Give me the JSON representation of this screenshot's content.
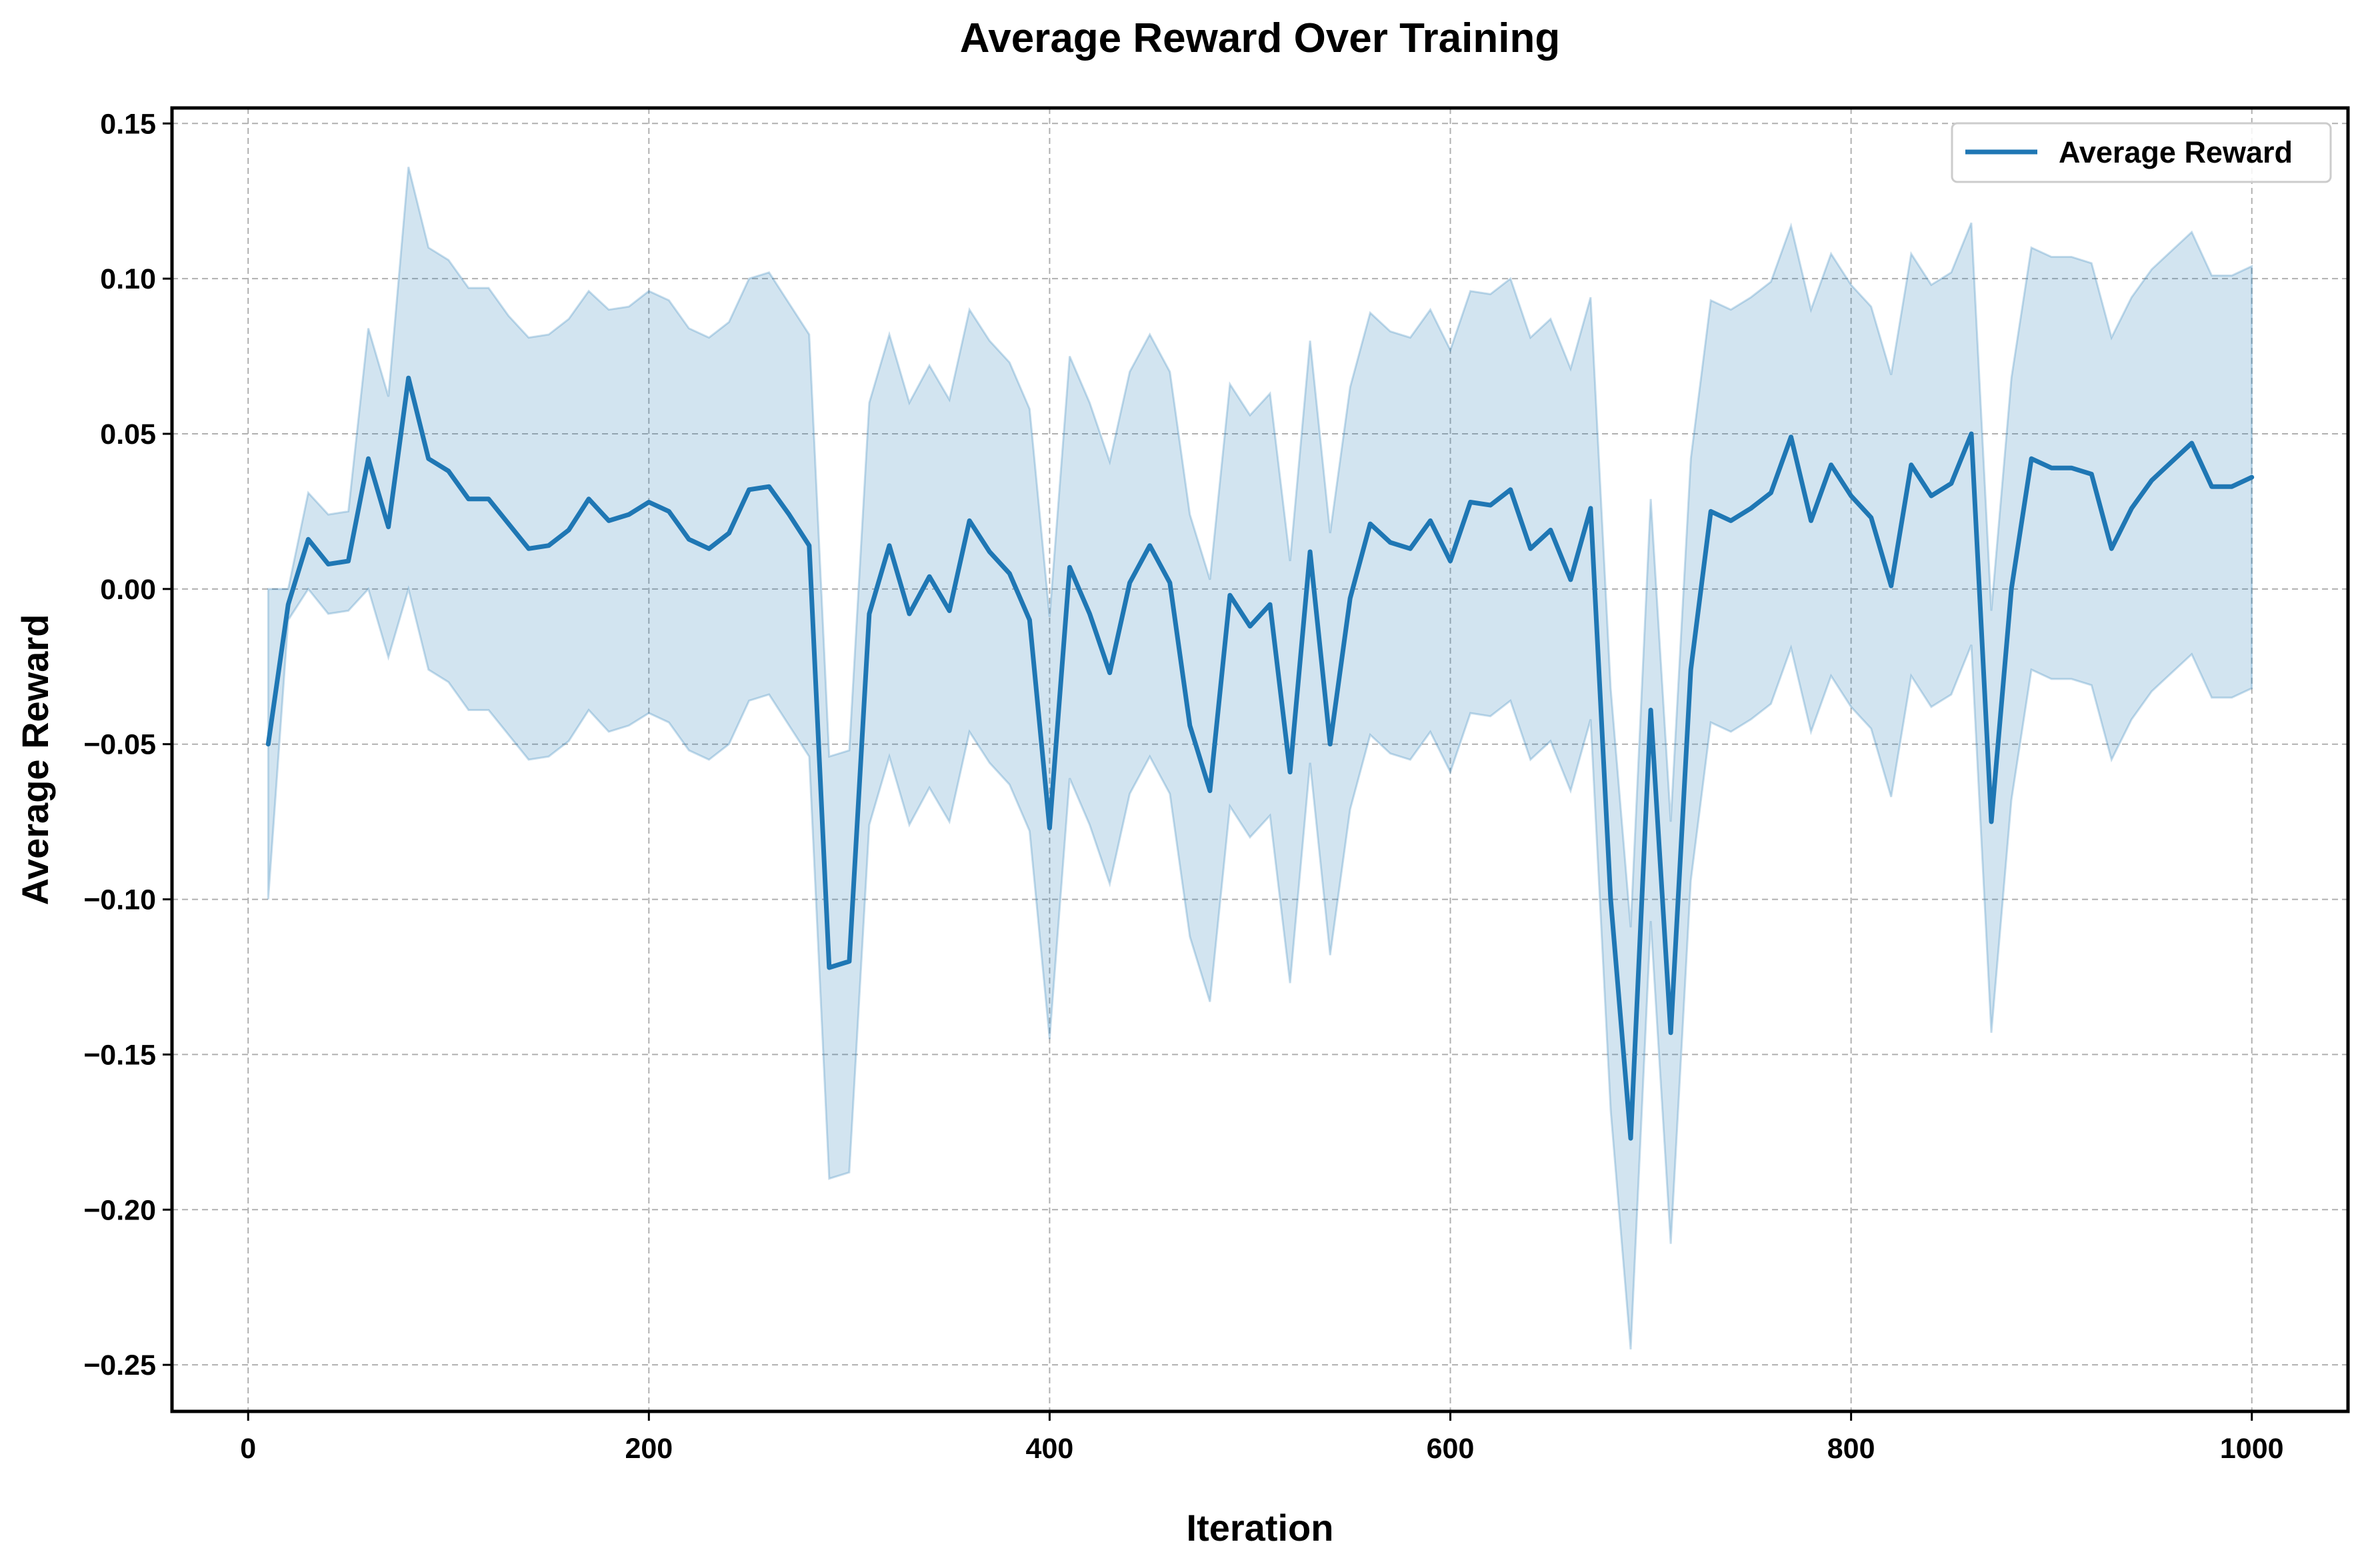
{
  "chart_data": {
    "type": "line",
    "title": "Average Reward Over Training",
    "xlabel": "Iteration",
    "ylabel": "Average Reward",
    "xlim": [
      -38,
      1048
    ],
    "ylim": [
      -0.265,
      0.155
    ],
    "xticks": [
      0,
      200,
      400,
      600,
      800,
      1000
    ],
    "yticks": [
      -0.25,
      -0.2,
      -0.15,
      -0.1,
      -0.05,
      0.0,
      0.05,
      0.1,
      0.15
    ],
    "xtick_labels": [
      "0",
      "200",
      "400",
      "600",
      "800",
      "1000"
    ],
    "ytick_labels": [
      "−0.25",
      "−0.20",
      "−0.15",
      "−0.10",
      "−0.05",
      "0.00",
      "0.05",
      "0.10",
      "0.15"
    ],
    "grid": true,
    "legend": {
      "placement": "top-right",
      "entries": [
        "Average Reward"
      ]
    },
    "colors": {
      "line": "#1f77b4",
      "band": "#1f77b4"
    },
    "series": [
      {
        "name": "Average Reward",
        "x": [
          10,
          20,
          30,
          40,
          50,
          60,
          70,
          80,
          90,
          100,
          110,
          120,
          130,
          140,
          150,
          160,
          170,
          180,
          190,
          200,
          210,
          220,
          230,
          240,
          250,
          260,
          270,
          280,
          290,
          300,
          310,
          320,
          330,
          340,
          350,
          360,
          370,
          380,
          390,
          400,
          410,
          420,
          430,
          440,
          450,
          460,
          470,
          480,
          490,
          500,
          510,
          520,
          530,
          540,
          550,
          560,
          570,
          580,
          590,
          600,
          610,
          620,
          630,
          640,
          650,
          660,
          670,
          680,
          690,
          700,
          710,
          720,
          730,
          740,
          750,
          760,
          770,
          780,
          790,
          800,
          810,
          820,
          830,
          840,
          850,
          860,
          870,
          880,
          890,
          900,
          910,
          920,
          930,
          940,
          950,
          960,
          970,
          980,
          990,
          1000
        ],
        "y": [
          -0.05,
          -0.005,
          0.016,
          0.008,
          0.009,
          0.042,
          0.02,
          0.068,
          0.042,
          0.038,
          0.029,
          0.029,
          0.021,
          0.013,
          0.014,
          0.019,
          0.029,
          0.022,
          0.024,
          0.028,
          0.025,
          0.016,
          0.013,
          0.018,
          0.032,
          0.033,
          0.024,
          0.014,
          -0.122,
          -0.12,
          -0.008,
          0.014,
          -0.008,
          0.004,
          -0.007,
          0.022,
          0.012,
          0.005,
          -0.01,
          -0.077,
          0.007,
          -0.008,
          -0.027,
          0.002,
          0.014,
          0.002,
          -0.044,
          -0.065,
          -0.002,
          -0.012,
          -0.005,
          -0.059,
          0.012,
          -0.05,
          -0.003,
          0.021,
          0.015,
          0.013,
          0.022,
          0.009,
          0.028,
          0.027,
          0.032,
          0.013,
          0.019,
          0.003,
          0.026,
          -0.1,
          -0.177,
          -0.039,
          -0.143,
          -0.026,
          0.025,
          0.022,
          0.026,
          0.031,
          0.049,
          0.022,
          0.04,
          0.03,
          0.023,
          0.001,
          0.04,
          0.03,
          0.034,
          0.05,
          -0.075,
          0.0,
          0.042,
          0.039,
          0.039,
          0.037,
          0.013,
          0.026,
          0.035,
          0.041,
          0.047,
          0.033,
          0.033,
          0.036
        ],
        "upper": [
          0.0,
          0.0,
          0.031,
          0.024,
          0.025,
          0.084,
          0.062,
          0.136,
          0.11,
          0.106,
          0.097,
          0.097,
          0.088,
          0.081,
          0.082,
          0.087,
          0.096,
          0.09,
          0.091,
          0.096,
          0.093,
          0.084,
          0.081,
          0.086,
          0.1,
          0.102,
          0.092,
          0.082,
          -0.054,
          -0.052,
          0.06,
          0.082,
          0.06,
          0.072,
          0.061,
          0.09,
          0.08,
          0.073,
          0.058,
          -0.009,
          0.075,
          0.06,
          0.041,
          0.07,
          0.082,
          0.07,
          0.024,
          0.003,
          0.066,
          0.056,
          0.063,
          0.009,
          0.08,
          0.018,
          0.065,
          0.089,
          0.083,
          0.081,
          0.09,
          0.077,
          0.096,
          0.095,
          0.1,
          0.081,
          0.087,
          0.071,
          0.094,
          -0.032,
          -0.109,
          0.029,
          -0.075,
          0.042,
          0.093,
          0.09,
          0.094,
          0.099,
          0.117,
          0.09,
          0.108,
          0.098,
          0.091,
          0.069,
          0.108,
          0.098,
          0.102,
          0.118,
          -0.007,
          0.068,
          0.11,
          0.107,
          0.107,
          0.105,
          0.081,
          0.094,
          0.103,
          0.109,
          0.115,
          0.101,
          0.101,
          0.104
        ],
        "lower": [
          -0.1,
          -0.01,
          0.0,
          -0.008,
          -0.007,
          0.0,
          -0.022,
          0.0,
          -0.026,
          -0.03,
          -0.039,
          -0.039,
          -0.047,
          -0.055,
          -0.054,
          -0.049,
          -0.039,
          -0.046,
          -0.044,
          -0.04,
          -0.043,
          -0.052,
          -0.055,
          -0.05,
          -0.036,
          -0.034,
          -0.044,
          -0.054,
          -0.19,
          -0.188,
          -0.076,
          -0.054,
          -0.076,
          -0.064,
          -0.075,
          -0.046,
          -0.056,
          -0.063,
          -0.078,
          -0.145,
          -0.061,
          -0.076,
          -0.095,
          -0.066,
          -0.054,
          -0.066,
          -0.112,
          -0.133,
          -0.07,
          -0.08,
          -0.073,
          -0.127,
          -0.056,
          -0.118,
          -0.071,
          -0.047,
          -0.053,
          -0.055,
          -0.046,
          -0.059,
          -0.04,
          -0.041,
          -0.036,
          -0.055,
          -0.049,
          -0.065,
          -0.042,
          -0.168,
          -0.245,
          -0.107,
          -0.211,
          -0.094,
          -0.043,
          -0.046,
          -0.042,
          -0.037,
          -0.019,
          -0.046,
          -0.028,
          -0.038,
          -0.045,
          -0.067,
          -0.028,
          -0.038,
          -0.034,
          -0.018,
          -0.143,
          -0.068,
          -0.026,
          -0.029,
          -0.029,
          -0.031,
          -0.055,
          -0.042,
          -0.033,
          -0.027,
          -0.021,
          -0.035,
          -0.035,
          -0.032
        ]
      }
    ]
  }
}
